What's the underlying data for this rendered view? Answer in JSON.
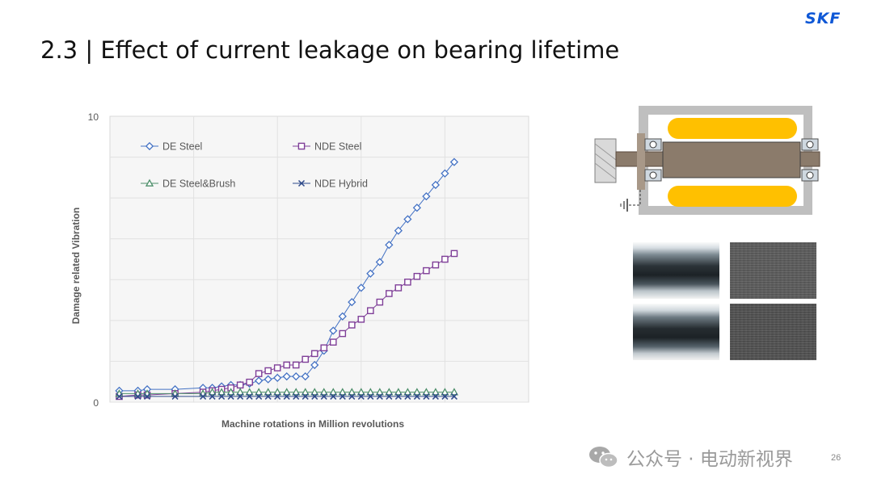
{
  "slide": {
    "logo": "SKF",
    "title": "2.3 |  Effect of current leakage on bearing lifetime",
    "watermark": "公众号 · 电动新视界",
    "page_number": "26"
  },
  "chart_data": {
    "type": "line",
    "title": "",
    "xlabel": "Machine rotations in Million revolutions",
    "ylabel": "Damage related Vibration",
    "ylim": [
      0,
      10
    ],
    "yticks": [
      "0",
      "10"
    ],
    "x": [
      1,
      3,
      4,
      7,
      10,
      11,
      12,
      13,
      14,
      15,
      16,
      17,
      18,
      19,
      20,
      21,
      22,
      23,
      24,
      25,
      26,
      27,
      28,
      29,
      30,
      31,
      32,
      33,
      34,
      35,
      36,
      37,
      38
    ],
    "series": [
      {
        "name": "DE Steel",
        "color": "#4472c4",
        "marker": "diamond",
        "values": [
          0.4,
          0.4,
          0.45,
          0.45,
          0.5,
          0.5,
          0.55,
          0.6,
          0.6,
          0.65,
          0.75,
          0.8,
          0.85,
          0.9,
          0.9,
          0.9,
          1.3,
          1.8,
          2.5,
          3.0,
          3.5,
          4.0,
          4.5,
          4.9,
          5.5,
          6.0,
          6.4,
          6.8,
          7.2,
          7.6,
          8.0,
          8.4,
          null
        ]
      },
      {
        "name": "NDE Steel",
        "color": "#7f3f98",
        "marker": "square",
        "values": [
          0.2,
          0.25,
          0.25,
          0.3,
          0.35,
          0.4,
          0.45,
          0.5,
          0.6,
          0.7,
          1.0,
          1.1,
          1.2,
          1.3,
          1.3,
          1.5,
          1.7,
          1.9,
          2.1,
          2.4,
          2.7,
          2.9,
          3.2,
          3.5,
          3.8,
          4.0,
          4.2,
          4.4,
          4.6,
          4.8,
          5.0,
          5.2,
          null
        ]
      },
      {
        "name": "DE Steel&Brush",
        "color": "#4e8f6b",
        "marker": "triangle",
        "values": [
          0.3,
          0.3,
          0.3,
          0.3,
          0.3,
          0.35,
          0.35,
          0.35,
          0.35,
          0.35,
          0.35,
          0.35,
          0.35,
          0.35,
          0.35,
          0.35,
          0.35,
          0.35,
          0.35,
          0.35,
          0.35,
          0.35,
          0.35,
          0.35,
          0.35,
          0.35,
          0.35,
          0.35,
          0.35,
          0.35,
          0.35,
          0.35,
          null
        ]
      },
      {
        "name": "NDE Hybrid",
        "color": "#2f4a8a",
        "marker": "x",
        "values": [
          0.2,
          0.2,
          0.2,
          0.2,
          0.2,
          0.2,
          0.2,
          0.2,
          0.2,
          0.2,
          0.2,
          0.2,
          0.2,
          0.2,
          0.2,
          0.2,
          0.2,
          0.2,
          0.2,
          0.2,
          0.2,
          0.2,
          0.2,
          0.2,
          0.2,
          0.2,
          0.2,
          0.2,
          0.2,
          0.2,
          0.2,
          0.2,
          null
        ]
      }
    ],
    "grid": true,
    "legend_position": "top-left"
  },
  "colors": {
    "skf_blue": "#0f58d6",
    "motor_yellow": "#ffc000",
    "shaft_brown": "#8b7b6b"
  }
}
